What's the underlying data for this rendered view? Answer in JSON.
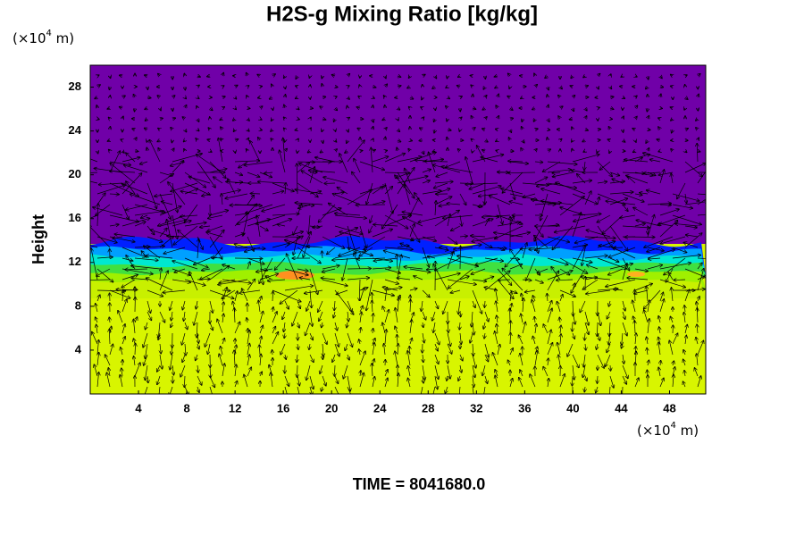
{
  "chart_data": {
    "type": "field",
    "title": "H2S-g Mixing Ratio [kg/kg]",
    "ylabel": "Height",
    "x_unit": {
      "base": "(×10",
      "exponent": "4",
      "suffix": " m)"
    },
    "y_unit": {
      "base": "(×10",
      "exponent": "4",
      "suffix": " m)"
    },
    "time_label": "TIME = 8041680.0",
    "xlim": [
      0,
      51
    ],
    "ylim": [
      0,
      30
    ],
    "xticks": [
      4,
      8,
      12,
      16,
      20,
      24,
      28,
      32,
      36,
      40,
      44,
      48
    ],
    "yticks": [
      4,
      8,
      12,
      16,
      20,
      24,
      28
    ]
  }
}
